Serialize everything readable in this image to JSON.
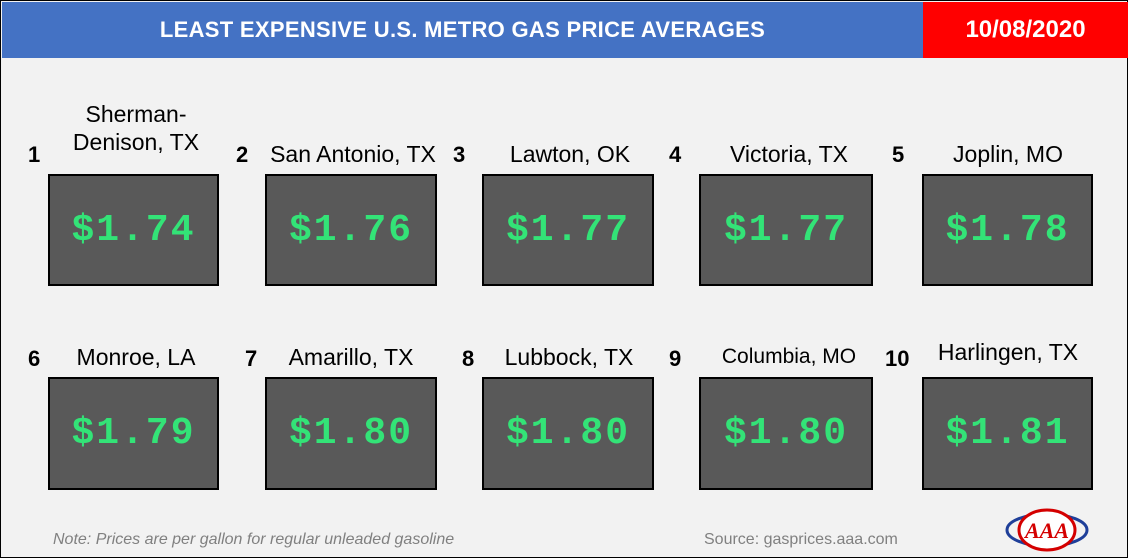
{
  "header": {
    "title": "LEAST EXPENSIVE U.S. METRO GAS PRICE AVERAGES",
    "date": "10/08/2020"
  },
  "metros": [
    {
      "rank": "1",
      "city": "Sherman-Denison, TX",
      "price": "$1.74"
    },
    {
      "rank": "2",
      "city": "San Antonio, TX",
      "price": "$1.76"
    },
    {
      "rank": "3",
      "city": "Lawton, OK",
      "price": "$1.77"
    },
    {
      "rank": "4",
      "city": "Victoria, TX",
      "price": "$1.77"
    },
    {
      "rank": "5",
      "city": "Joplin, MO",
      "price": "$1.78"
    },
    {
      "rank": "6",
      "city": "Monroe, LA",
      "price": "$1.79"
    },
    {
      "rank": "7",
      "city": "Amarillo, TX",
      "price": "$1.80"
    },
    {
      "rank": "8",
      "city": "Lubbock, TX",
      "price": "$1.80"
    },
    {
      "rank": "9",
      "city": "Columbia, MO",
      "price": "$1.80"
    },
    {
      "rank": "10",
      "city": "Harlingen, TX",
      "price": "$1.81"
    }
  ],
  "footer": {
    "note": "Note: Prices are per gallon for regular unleaded gasoline",
    "source": "Source: gasprices.aaa.com"
  },
  "logo": {
    "icon": "aaa-logo",
    "text": "AAA",
    "colors": {
      "red": "#d40000",
      "blue": "#1f3f99"
    }
  },
  "colors": {
    "header_bg": "#4472c4",
    "date_bg": "#ff0000",
    "box_bg": "#595959",
    "price_text": "#33e377",
    "background": "#f2f2f2"
  }
}
